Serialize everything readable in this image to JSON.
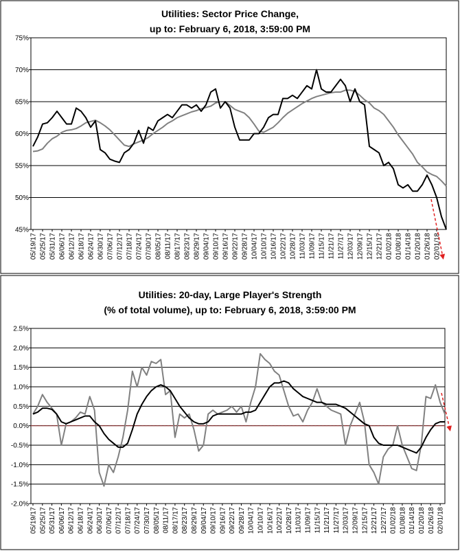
{
  "chart_data": [
    {
      "type": "line",
      "title": "Utilities: Sector Price Change,",
      "subtitle": "up to: February 6, 2018, 3:59:00 PM",
      "categories": [
        "05/19/17",
        null,
        "05/25/17",
        null,
        "05/31/17",
        null,
        "06/06/17",
        null,
        "06/12/17",
        null,
        "06/18/17",
        null,
        "06/24/17",
        null,
        "06/30/17",
        null,
        "07/06/17",
        null,
        "07/12/17",
        null,
        "07/18/17",
        null,
        "07/24/17",
        null,
        "07/30/17",
        null,
        "08/05/17",
        null,
        "08/11/17",
        null,
        "08/17/17",
        null,
        "08/23/17",
        null,
        "08/29/17",
        null,
        "09/04/17",
        null,
        "09/10/17",
        null,
        "09/16/17",
        null,
        "09/22/17",
        null,
        "09/28/17",
        null,
        "10/04/17",
        null,
        "10/10/17",
        null,
        "10/16/17",
        null,
        "10/22/17",
        null,
        "10/28/17",
        null,
        "11/03/17",
        null,
        "11/09/17",
        null,
        "11/15/17",
        null,
        "11/21/17",
        null,
        "11/27/17",
        null,
        "12/03/17",
        null,
        "12/09/17",
        null,
        "12/15/17",
        null,
        "12/21/17",
        null,
        "01/02/18",
        null,
        "01/08/18",
        null,
        "01/14/18",
        null,
        "01/20/18",
        null,
        "01/26/18",
        null,
        "02/01/18",
        null,
        null
      ],
      "series": [
        {
          "color": "#808080",
          "values": [
            57.2,
            57.3,
            57.6,
            58.5,
            59.2,
            59.6,
            60.2,
            60.5,
            60.6,
            60.8,
            61.2,
            61.7,
            61.9,
            62.1,
            61.7,
            61.2,
            60.6,
            59.8,
            59,
            58.2,
            58,
            58.4,
            58.7,
            59,
            59.4,
            60,
            60.5,
            61,
            61.6,
            62,
            62.5,
            62.8,
            63.1,
            63.4,
            63.6,
            63.9,
            64.1,
            64.3,
            64.8,
            65,
            65,
            64.4,
            63.8,
            63.5,
            63.2,
            62.5,
            61.5,
            60.4,
            60.2,
            60.6,
            61,
            61.7,
            62.5,
            63.2,
            63.7,
            64.2,
            64.7,
            65.1,
            65.5,
            65.8,
            66,
            66.2,
            66.4,
            66.5,
            66.5,
            66.8,
            66.8,
            66.6,
            66,
            65.3,
            64.8,
            64,
            63.6,
            63,
            62,
            61,
            59.8,
            58.8,
            57.8,
            56.8,
            55.5,
            54.8,
            54,
            53.6,
            53.3,
            52.6,
            51.8
          ]
        },
        {
          "color": "#000000",
          "values": [
            58,
            59.5,
            61.5,
            61.7,
            62.5,
            63.5,
            62.5,
            61.5,
            61.5,
            64,
            63.5,
            62.5,
            61,
            62,
            57.5,
            57,
            56,
            55.7,
            55.5,
            57,
            57.5,
            58.5,
            60.5,
            58.5,
            61,
            60.5,
            62,
            62.5,
            63,
            62.5,
            63.5,
            64.5,
            64.5,
            64,
            64.5,
            63.5,
            64.5,
            66.5,
            67,
            64,
            65,
            64,
            61,
            59,
            59,
            59,
            60,
            60,
            61,
            62.5,
            63,
            63,
            65.5,
            65.5,
            66,
            65.5,
            66.5,
            67.5,
            67,
            70,
            67,
            66.5,
            66.5,
            67.5,
            68.5,
            67.5,
            65,
            67,
            65,
            64.5,
            58,
            57.5,
            57,
            55,
            55.5,
            54.5,
            52,
            51.5,
            52,
            51,
            51,
            52,
            53.5,
            52,
            50,
            47,
            45
          ]
        }
      ],
      "ylim": [
        45,
        75
      ],
      "yticks": [
        {
          "value": 45,
          "label": "45%"
        },
        {
          "value": 50,
          "label": "50%"
        },
        {
          "value": 55,
          "label": "55%"
        },
        {
          "value": 60,
          "label": "60%"
        },
        {
          "value": 65,
          "label": "65%"
        },
        {
          "value": 70,
          "label": "70%"
        },
        {
          "value": 75,
          "label": "75%"
        }
      ],
      "grid": true
    },
    {
      "type": "line",
      "title": "Utilities: 20-day, Large Player's Strength",
      "subtitle": "(% of total volume), up to: February 6, 2018, 3:59:00 PM",
      "categories": [
        "05/19/17",
        null,
        "05/25/17",
        null,
        "05/31/17",
        null,
        "06/06/17",
        null,
        "06/12/17",
        null,
        "06/18/17",
        null,
        "06/24/17",
        null,
        "06/30/17",
        null,
        "07/06/17",
        null,
        "07/12/17",
        null,
        "07/18/17",
        null,
        "07/24/17",
        null,
        "07/30/17",
        null,
        "08/05/17",
        null,
        "08/11/17",
        null,
        "08/17/17",
        null,
        "08/23/17",
        null,
        "08/29/17",
        null,
        "09/04/17",
        null,
        "09/10/17",
        null,
        "09/16/17",
        null,
        "09/22/17",
        null,
        "09/28/17",
        null,
        "10/04/17",
        null,
        "10/10/17",
        null,
        "10/16/17",
        null,
        "10/22/17",
        null,
        "10/28/17",
        null,
        "11/03/17",
        null,
        "11/09/17",
        null,
        "11/15/17",
        null,
        "11/21/17",
        null,
        "11/27/17",
        null,
        "12/03/17",
        null,
        "12/09/17",
        null,
        "12/15/17",
        null,
        "12/21/17",
        null,
        "12/27/17",
        null,
        "01/02/18",
        null,
        "01/08/18",
        null,
        "01/14/18",
        null,
        "01/20/18",
        null,
        "01/26/18",
        null,
        "02/01/18",
        null
      ],
      "series": [
        {
          "color": "#808080",
          "values": [
            0.3,
            0.5,
            0.8,
            0.6,
            0.45,
            0.3,
            -0.5,
            0.05,
            0.1,
            0.2,
            0.35,
            0.3,
            0.75,
            0.4,
            -1.2,
            -1.55,
            -1.0,
            -1.2,
            -0.8,
            -0.3,
            0.4,
            1.4,
            1.0,
            1.5,
            1.3,
            1.65,
            1.6,
            1.7,
            0.8,
            0.9,
            -0.3,
            0.3,
            0.2,
            0.3,
            -0.1,
            -0.65,
            -0.5,
            0.3,
            0.4,
            0.3,
            0.35,
            0.4,
            0.5,
            0.35,
            0.5,
            0.1,
            0.6,
            1.0,
            1.85,
            1.7,
            1.6,
            1.4,
            1.3,
            0.9,
            0.5,
            0.25,
            0.3,
            0.1,
            0.4,
            0.6,
            0.95,
            0.6,
            0.5,
            0.4,
            0.35,
            0.3,
            -0.5,
            0.0,
            0.3,
            0.6,
            0.1,
            -1.0,
            -1.2,
            -1.5,
            -0.8,
            -0.6,
            -0.5,
            0.0,
            -0.5,
            -0.8,
            -1.1,
            -1.15,
            -0.5,
            0.75,
            0.7,
            1.05,
            0.6,
            0.3
          ]
        },
        {
          "color": "#000000",
          "values": [
            0.3,
            0.35,
            0.45,
            0.45,
            0.42,
            0.3,
            0.1,
            0.05,
            0.1,
            0.15,
            0.2,
            0.25,
            0.25,
            0.1,
            0.0,
            -0.2,
            -0.35,
            -0.45,
            -0.55,
            -0.55,
            -0.45,
            -0.1,
            0.3,
            0.55,
            0.75,
            0.9,
            1.0,
            1.05,
            1.0,
            0.9,
            0.7,
            0.5,
            0.35,
            0.2,
            0.1,
            0.05,
            0.05,
            0.1,
            0.25,
            0.3,
            0.3,
            0.3,
            0.3,
            0.3,
            0.3,
            0.35,
            0.35,
            0.4,
            0.6,
            0.8,
            1.0,
            1.1,
            1.1,
            1.15,
            1.1,
            0.95,
            0.85,
            0.75,
            0.7,
            0.65,
            0.6,
            0.6,
            0.55,
            0.55,
            0.55,
            0.5,
            0.45,
            0.35,
            0.25,
            0.15,
            0.05,
            0.0,
            -0.3,
            -0.45,
            -0.5,
            -0.5,
            -0.5,
            -0.5,
            -0.55,
            -0.6,
            -0.65,
            -0.7,
            -0.55,
            -0.3,
            -0.1,
            0.05,
            0.1,
            0.1
          ]
        }
      ],
      "ylim": [
        -2.0,
        2.5
      ],
      "yticks": [
        {
          "value": -2.0,
          "label": "-2.0%"
        },
        {
          "value": -1.5,
          "label": "-1.5%"
        },
        {
          "value": -1.0,
          "label": "-1.0%"
        },
        {
          "value": -0.5,
          "label": "-0.5%"
        },
        {
          "value": 0.0,
          "label": "0.0%"
        },
        {
          "value": 0.5,
          "label": "0.5%"
        },
        {
          "value": 1.0,
          "label": "1.0%"
        },
        {
          "value": 1.5,
          "label": "1.5%"
        },
        {
          "value": 2.0,
          "label": "2.0%"
        },
        {
          "value": 2.5,
          "label": "2.5%"
        }
      ],
      "grid": true
    }
  ]
}
